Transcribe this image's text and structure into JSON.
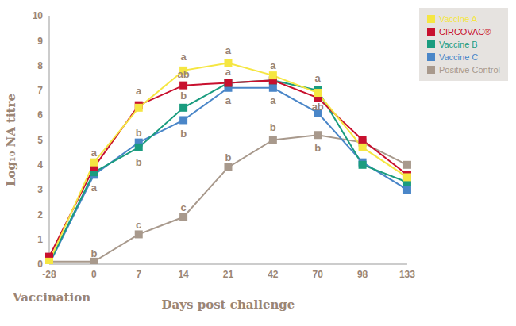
{
  "chart_data": {
    "type": "line",
    "ylabel": "Log₁₀ NA titre",
    "xlabel": "Days post challenge",
    "x_secondary_label": "Vaccination",
    "categories": [
      -28,
      0,
      7,
      14,
      21,
      42,
      70,
      98,
      133
    ],
    "ylim": [
      0,
      10
    ],
    "yticks": [
      0,
      1,
      2,
      3,
      4,
      5,
      6,
      7,
      8,
      9,
      10
    ],
    "grid": false,
    "legend": "top-right",
    "marker": "square",
    "series": [
      {
        "name": "Positive Control",
        "color": "#a8998c",
        "values": [
          0.1,
          0.1,
          1.2,
          1.9,
          3.9,
          5.0,
          5.2,
          4.9,
          4.0
        ]
      },
      {
        "name": "Vaccine C",
        "color": "#4a86c8",
        "values": [
          0.0,
          3.6,
          4.9,
          5.8,
          7.1,
          7.1,
          6.1,
          4.1,
          3.0
        ]
      },
      {
        "name": "Vaccine B",
        "color": "#1a9c7f",
        "values": [
          0.05,
          3.7,
          4.7,
          6.3,
          7.3,
          7.4,
          7.0,
          4.0,
          3.3
        ]
      },
      {
        "name": "CIRCOVAC®",
        "color": "#c8102e",
        "values": [
          0.3,
          3.9,
          6.4,
          7.2,
          7.3,
          7.4,
          6.7,
          5.0,
          3.6
        ]
      },
      {
        "name": "Vaccine A",
        "color": "#f5e642",
        "values": [
          0.1,
          4.1,
          6.3,
          7.8,
          8.1,
          7.6,
          6.9,
          4.7,
          3.5
        ]
      }
    ],
    "annotations": [
      {
        "x": 0,
        "y": 4.5,
        "text": "a"
      },
      {
        "x": 0,
        "y": 0.45,
        "text": "b"
      },
      {
        "x": 0,
        "y": 3.1,
        "text": "a"
      },
      {
        "x": 7,
        "y": 7.0,
        "text": "a"
      },
      {
        "x": 7,
        "y": 5.3,
        "text": "b"
      },
      {
        "x": 7,
        "y": 4.1,
        "text": "b"
      },
      {
        "x": 7,
        "y": 1.6,
        "text": "c"
      },
      {
        "x": 14,
        "y": 8.35,
        "text": "a"
      },
      {
        "x": 14,
        "y": 7.65,
        "text": "ab"
      },
      {
        "x": 14,
        "y": 6.8,
        "text": "b"
      },
      {
        "x": 14,
        "y": 5.25,
        "text": "b"
      },
      {
        "x": 14,
        "y": 2.3,
        "text": "c"
      },
      {
        "x": 21,
        "y": 8.6,
        "text": "a"
      },
      {
        "x": 21,
        "y": 7.75,
        "text": "a"
      },
      {
        "x": 21,
        "y": 6.6,
        "text": "a"
      },
      {
        "x": 21,
        "y": 4.3,
        "text": "b"
      },
      {
        "x": 42,
        "y": 8.0,
        "text": "a"
      },
      {
        "x": 42,
        "y": 6.6,
        "text": "a"
      },
      {
        "x": 42,
        "y": 5.5,
        "text": "b"
      },
      {
        "x": 70,
        "y": 7.5,
        "text": "a"
      },
      {
        "x": 70,
        "y": 6.35,
        "text": "ab"
      },
      {
        "x": 70,
        "y": 4.7,
        "text": "b"
      }
    ]
  }
}
